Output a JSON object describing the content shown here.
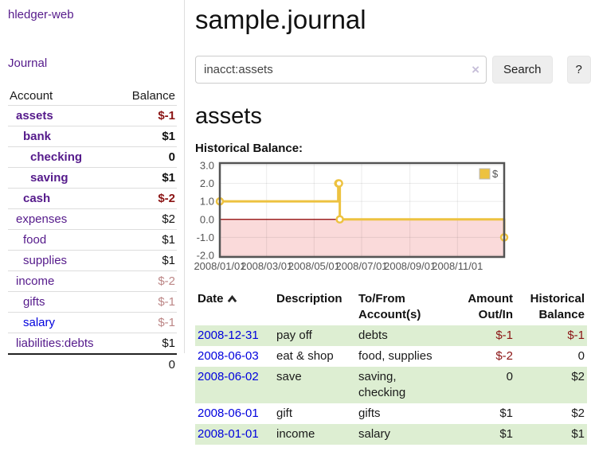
{
  "colors": {
    "purple": "#551A8B",
    "blue": "#0000DD",
    "negative": "#8B1414",
    "negative_muted": "#BC8686",
    "stripe_green": "#DDEED2",
    "series_yellow": "#EDC240",
    "chart_border": "#545454",
    "zero_line": "#8B0000",
    "negative_region": "#FADADA"
  },
  "app": {
    "title": "hledger-web"
  },
  "sidebar": {
    "journal_link": "Journal",
    "accounts_table": {
      "headers": {
        "account": "Account",
        "balance": "Balance"
      },
      "rows": [
        {
          "name": "assets",
          "balance": "$-1"
        },
        {
          "name": "bank",
          "balance": "$1"
        },
        {
          "name": "checking",
          "balance": "0"
        },
        {
          "name": "saving",
          "balance": "$1"
        },
        {
          "name": "cash",
          "balance": "$-2"
        },
        {
          "name": "expenses",
          "balance": "$2"
        },
        {
          "name": "food",
          "balance": "$1"
        },
        {
          "name": "supplies",
          "balance": "$1"
        },
        {
          "name": "income",
          "balance": "$-2"
        },
        {
          "name": "gifts",
          "balance": "$-1"
        },
        {
          "name": "salary",
          "balance": "$-1"
        },
        {
          "name": "liabilities:debts",
          "balance": "$1"
        }
      ],
      "total": "0"
    }
  },
  "main": {
    "title": "sample.journal",
    "search": {
      "value": "inacct:assets",
      "clear_icon": "×",
      "button_label": "Search",
      "help_label": "?"
    },
    "account_heading": "assets",
    "chart_title": "Historical Balance:"
  },
  "chart_data": {
    "type": "line",
    "step": true,
    "series": [
      {
        "name": "$",
        "points": [
          {
            "date": "2008/01/01",
            "value": 1
          },
          {
            "date": "2008/06/01",
            "value": 2
          },
          {
            "date": "2008/06/02",
            "value": 2
          },
          {
            "date": "2008/06/03",
            "value": 0
          },
          {
            "date": "2008/12/31",
            "value": -1
          }
        ]
      }
    ],
    "legend": "$",
    "legend_position": "top-right",
    "x_range": [
      "2008/01/01",
      "2008/12/31"
    ],
    "x_ticks": [
      "2008/01/01",
      "2008/03/01",
      "2008/05/01",
      "2008/07/01",
      "2008/09/01",
      "2008/11/01"
    ],
    "y_ticks": [
      "3.0",
      "2.0",
      "1.0",
      "0.0",
      "-1.0",
      "-2.0"
    ],
    "ylim": [
      -2.09,
      3.13
    ],
    "grid": true
  },
  "register_table": {
    "headers": {
      "date": "Date",
      "description": "Description",
      "account": "To/From\nAccount(s)",
      "amount": "Amount\nOut/In",
      "balance": "Historical\nBalance"
    },
    "rows": [
      {
        "date": "2008-12-31",
        "description": "pay off",
        "accounts": "debts",
        "amount": "$-1",
        "balance": "$-1"
      },
      {
        "date": "2008-06-03",
        "description": "eat & shop",
        "accounts": "food, supplies",
        "amount": "$-2",
        "balance": "0"
      },
      {
        "date": "2008-06-02",
        "description": "save",
        "accounts": "saving,\nchecking",
        "amount": "0",
        "balance": "$2"
      },
      {
        "date": "2008-06-01",
        "description": "gift",
        "accounts": "gifts",
        "amount": "$1",
        "balance": "$2"
      },
      {
        "date": "2008-01-01",
        "description": "income",
        "accounts": "salary",
        "amount": "$1",
        "balance": "$1"
      }
    ]
  }
}
